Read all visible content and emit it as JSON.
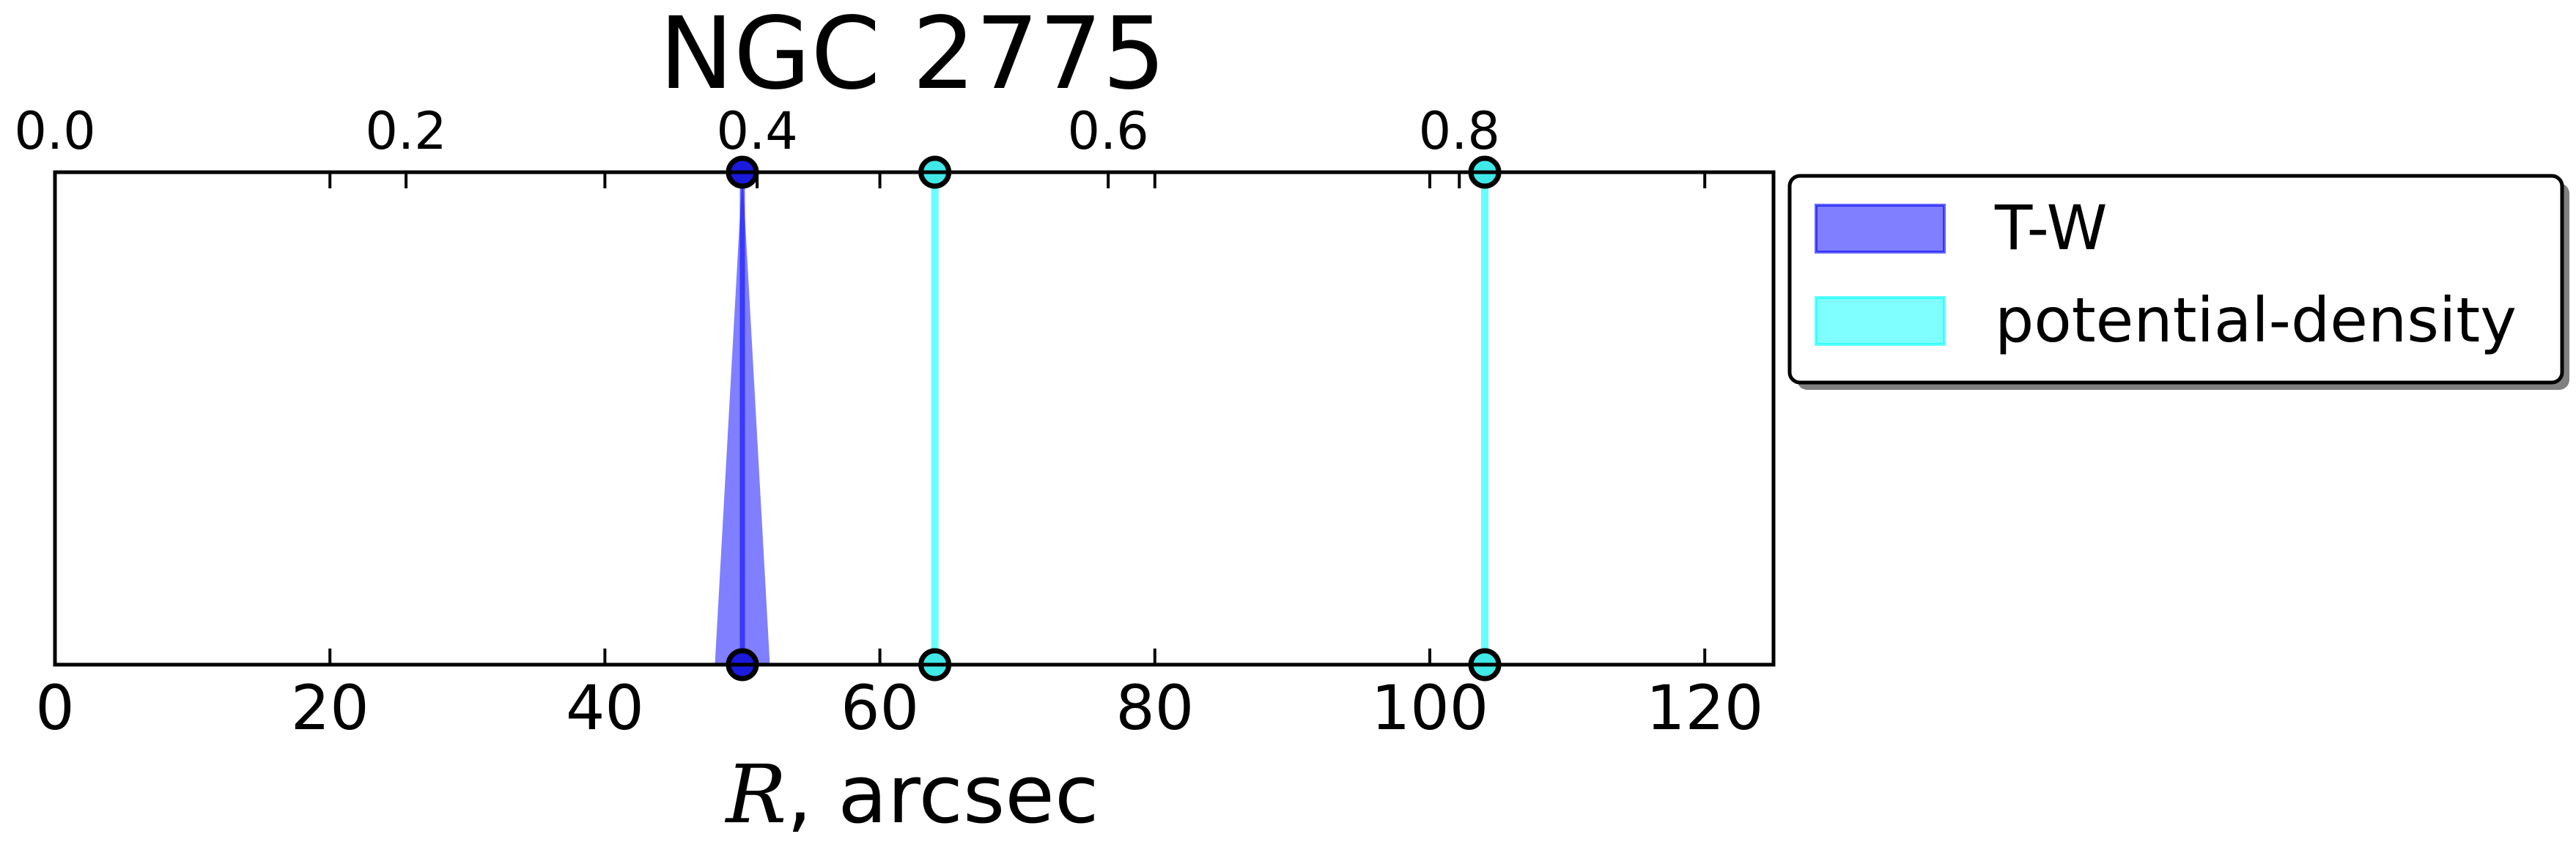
{
  "chart_data": {
    "type": "line",
    "title": "NGC 2775",
    "xlabel_var": "R",
    "xlabel_unit": ", arcsec",
    "xlim": [
      0,
      125
    ],
    "x_ticks": [
      0,
      20,
      40,
      60,
      80,
      100,
      120
    ],
    "top_axis": {
      "label": "",
      "ticks": [
        {
          "label": "0.0",
          "value": 0.0
        },
        {
          "label": "0.2",
          "value": 0.2
        },
        {
          "label": "0.4",
          "value": 0.4
        },
        {
          "label": "0.6",
          "value": 0.6
        },
        {
          "label": "0.8",
          "value": 0.8
        }
      ]
    },
    "grid": false,
    "legend_placement": "outside-upper-right",
    "series": [
      {
        "name": "T-W",
        "color": "#0000ff",
        "band_alpha": 0.5,
        "positions": [
          {
            "x": 50,
            "x_low": 48,
            "x_high": 52
          }
        ]
      },
      {
        "name": "potential-density",
        "color": "#00ffff",
        "band_alpha": 0.5,
        "positions": [
          {
            "x": 64,
            "x_low": 64,
            "x_high": 64
          },
          {
            "x": 104,
            "x_low": 104,
            "x_high": 104
          }
        ]
      }
    ]
  }
}
